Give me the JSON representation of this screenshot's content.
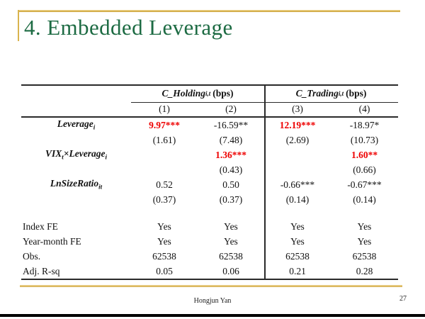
{
  "slide": {
    "title": "4. Embedded Leverage",
    "footer": {
      "author": "Hongjun Yan",
      "page_number": "27"
    },
    "colors": {
      "title_green": "#1D6B43",
      "accent_gold": "#D9B44E",
      "highlight_red": "#EE0000"
    }
  },
  "table": {
    "col_groups": [
      {
        "name": "C_Holding",
        "sub": "i,t",
        "unit": "(bps)"
      },
      {
        "name": "C_Trading",
        "sub": "i,t",
        "unit": "(bps)"
      }
    ],
    "col_numbers": [
      "(1)",
      "(2)",
      "(3)",
      "(4)"
    ],
    "rows": {
      "leverage": {
        "label": "Leverage",
        "sub": "i",
        "values": [
          "9.97***",
          "-16.59**",
          "12.19***",
          "-18.97*"
        ],
        "se": [
          "(1.61)",
          "(7.48)",
          "(2.69)",
          "(10.73)"
        ]
      },
      "vix_leverage": {
        "label1": "VIX",
        "sub1": "t",
        "label2": "×Leverage",
        "sub2": "i",
        "values": [
          "",
          "1.36***",
          "",
          "1.60**"
        ],
        "se": [
          "",
          "(0.43)",
          "",
          "(0.66)"
        ]
      },
      "lnsizeratio": {
        "label": "LnSizeRatio",
        "sub": "it",
        "values": [
          "0.52",
          "0.50",
          "-0.66***",
          "-0.67***"
        ],
        "se": [
          "(0.37)",
          "(0.37)",
          "(0.14)",
          "(0.14)"
        ]
      },
      "index_fe": {
        "label": "Index FE",
        "values": [
          "Yes",
          "Yes",
          "Yes",
          "Yes"
        ]
      },
      "year_month_fe": {
        "label": "Year-month FE",
        "values": [
          "Yes",
          "Yes",
          "Yes",
          "Yes"
        ]
      },
      "obs": {
        "label": "Obs.",
        "values": [
          "62538",
          "62538",
          "62538",
          "62538"
        ]
      },
      "adj_rsq": {
        "label": "Adj. R-sq",
        "values": [
          "0.05",
          "0.06",
          "0.21",
          "0.28"
        ]
      }
    }
  }
}
